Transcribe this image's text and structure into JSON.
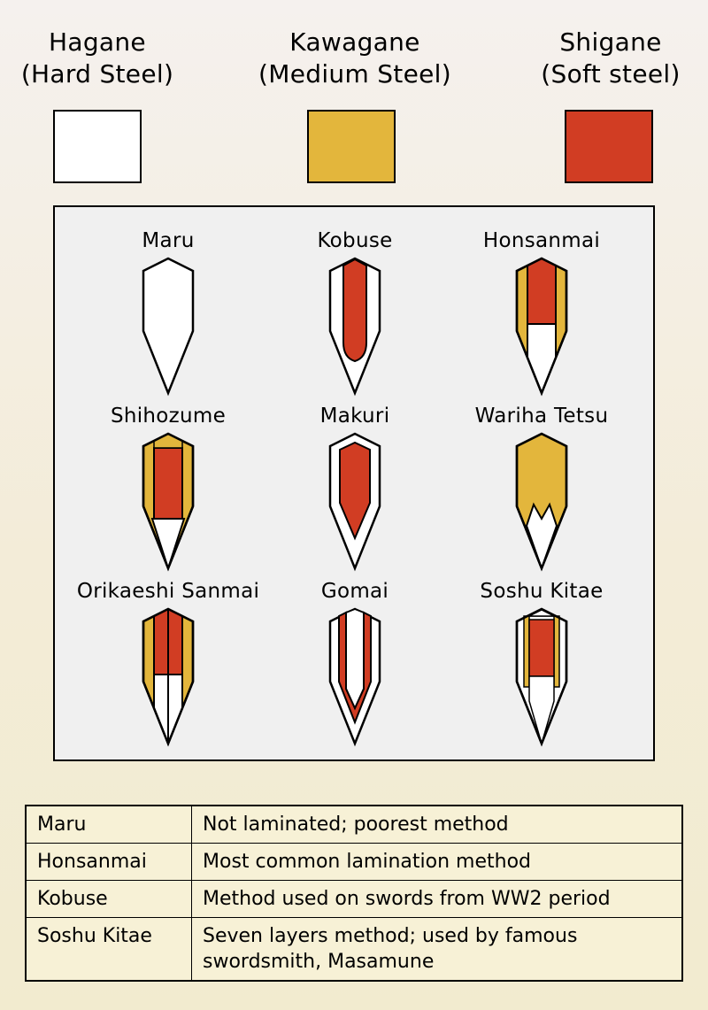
{
  "legend": [
    {
      "name": "Hagane",
      "translation": "(Hard Steel)",
      "color": "#ffffff"
    },
    {
      "name": "Kawagane",
      "translation": "(Medium Steel)",
      "color": "#e3b63c"
    },
    {
      "name": "Shigane",
      "translation": "(Soft steel)",
      "color": "#d13d23"
    }
  ],
  "methods": [
    {
      "name": "Maru"
    },
    {
      "name": "Kobuse"
    },
    {
      "name": "Honsanmai"
    },
    {
      "name": "Shihozume"
    },
    {
      "name": "Makuri"
    },
    {
      "name": "Wariha Tetsu"
    },
    {
      "name": "Orikaeshi Sanmai"
    },
    {
      "name": "Gomai"
    },
    {
      "name": "Soshu Kitae"
    }
  ],
  "notes": [
    {
      "method": "Maru",
      "description": "Not laminated; poorest method"
    },
    {
      "method": "Honsanmai",
      "description": "Most common lamination method"
    },
    {
      "method": "Kobuse",
      "description": "Method used on swords from WW2 period"
    },
    {
      "method": "Soshu Kitae",
      "description": "Seven layers method; used by famous swordsmith, Masamune"
    }
  ]
}
